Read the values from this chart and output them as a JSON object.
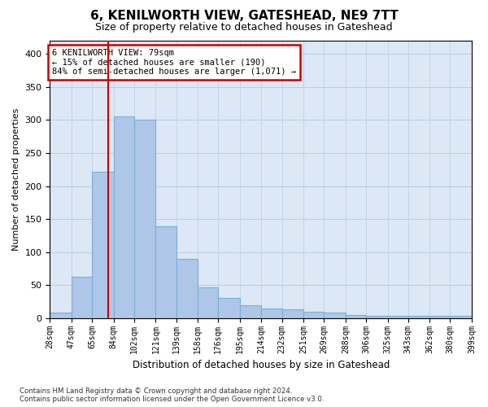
{
  "title": "6, KENILWORTH VIEW, GATESHEAD, NE9 7TT",
  "subtitle": "Size of property relative to detached houses in Gateshead",
  "xlabel": "Distribution of detached houses by size in Gateshead",
  "ylabel": "Number of detached properties",
  "annotation_text": "6 KENILWORTH VIEW: 79sqm\n← 15% of detached houses are smaller (190)\n84% of semi-detached houses are larger (1,071) →",
  "bin_edges": [
    28,
    47,
    65,
    84,
    102,
    121,
    139,
    158,
    176,
    195,
    214,
    232,
    251,
    269,
    288,
    306,
    325,
    343,
    362,
    380,
    399
  ],
  "bin_labels": [
    "28sqm",
    "47sqm",
    "65sqm",
    "84sqm",
    "102sqm",
    "121sqm",
    "139sqm",
    "158sqm",
    "176sqm",
    "195sqm",
    "214sqm",
    "232sqm",
    "251sqm",
    "269sqm",
    "288sqm",
    "306sqm",
    "325sqm",
    "343sqm",
    "362sqm",
    "380sqm",
    "399sqm"
  ],
  "bar_heights": [
    8,
    63,
    221,
    305,
    301,
    139,
    90,
    46,
    31,
    20,
    15,
    13,
    10,
    8,
    5,
    4,
    4,
    3,
    3,
    3
  ],
  "bar_color": "#aec6e8",
  "bar_edge_color": "#7aaed6",
  "vline_x": 79,
  "vline_color": "#cc0000",
  "annotation_box_edgecolor": "#cc0000",
  "bg_axes": "#dce8f5",
  "grid_color": "#b8cfe0",
  "ylim_max": 420,
  "yticks": [
    0,
    50,
    100,
    150,
    200,
    250,
    300,
    350,
    400
  ],
  "footnote": "Contains HM Land Registry data © Crown copyright and database right 2024.\nContains public sector information licensed under the Open Government Licence v3.0."
}
